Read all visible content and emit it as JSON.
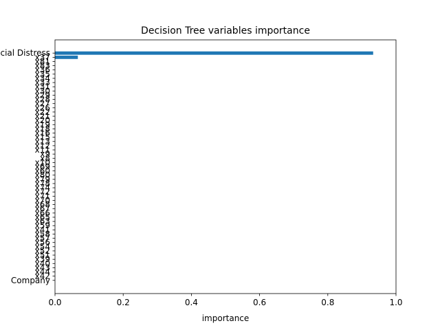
{
  "chart_data": {
    "type": "bar",
    "orientation": "horizontal",
    "title": "Decision Tree variables importance",
    "xlabel": "importance",
    "ylabel": "",
    "xlim": [
      0,
      1.0
    ],
    "xticks": [
      "0.0",
      "0.2",
      "0.4",
      "0.6",
      "0.8",
      "1.0"
    ],
    "grid": false,
    "bar_color": "#1f77b4",
    "categories": [
      "Company",
      "x42",
      "x44",
      "x43",
      "x40",
      "x39",
      "x51",
      "x52",
      "x54",
      "x56",
      "x57",
      "x58",
      "x41",
      "x59",
      "x63",
      "x65",
      "x66",
      "x67",
      "x68",
      "x70",
      "x71",
      "x72",
      "x74",
      "x78",
      "x79",
      "x80",
      "x60",
      "x69",
      "x10",
      "x8",
      "x9",
      "x11",
      "x12",
      "x13",
      "x15",
      "x16",
      "x18",
      "x19",
      "x20",
      "x21",
      "x22",
      "x26",
      "x27",
      "x28",
      "x29",
      "x30",
      "x31",
      "x33",
      "x34",
      "x35",
      "x36",
      "x83",
      "x81",
      "x37",
      "Financial Distress"
    ],
    "values": [
      0,
      0,
      0,
      0,
      0,
      0,
      0,
      0,
      0,
      0,
      0,
      0,
      0,
      0,
      0,
      0,
      0,
      0,
      0,
      0,
      0,
      0,
      0,
      0,
      0,
      0,
      0,
      0,
      0,
      0,
      0,
      0,
      0,
      0,
      0,
      0,
      0,
      0,
      0,
      0,
      0,
      0,
      0,
      0,
      0,
      0,
      0,
      0,
      0,
      0,
      0,
      0,
      0,
      0.067,
      0.933
    ]
  }
}
